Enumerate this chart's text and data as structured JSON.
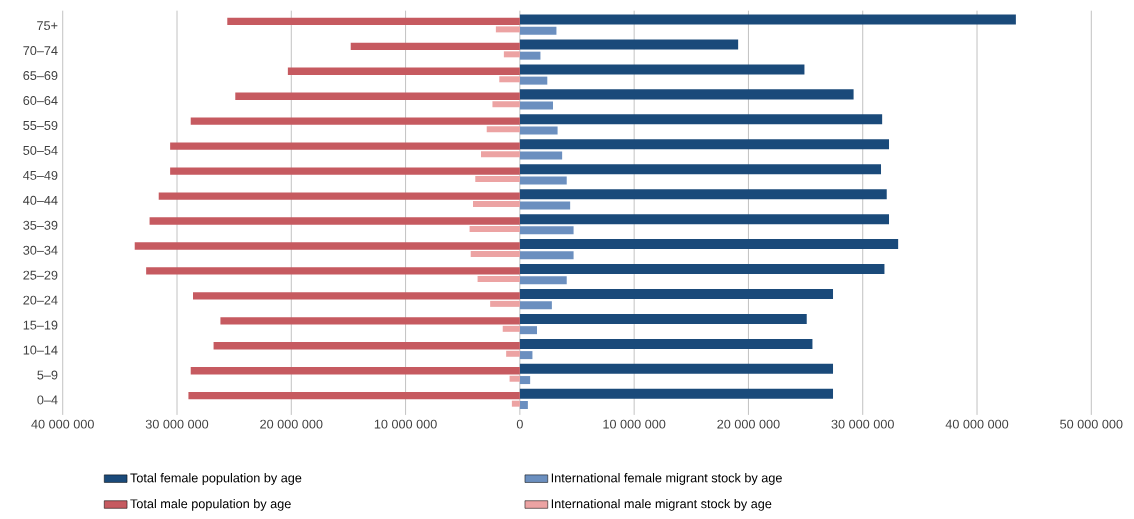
{
  "chart_data": {
    "type": "bar",
    "orientation": "horizontal",
    "categories": [
      "75+",
      "70–74",
      "65–69",
      "60–64",
      "55–59",
      "50–54",
      "45–49",
      "40–44",
      "35–39",
      "30–34",
      "25–29",
      "20–24",
      "15–19",
      "10–14",
      "5–9",
      "0–4"
    ],
    "series": [
      {
        "name": "Total female population by age",
        "color": "#1a4a7a",
        "values": [
          43400000,
          19100000,
          24900000,
          29200000,
          31700000,
          32300000,
          31600000,
          32100000,
          32300000,
          33100000,
          31900000,
          27400000,
          25100000,
          25600000,
          27400000,
          27400000
        ]
      },
      {
        "name": "International female migrant stock by age",
        "color": "#6b8fbf",
        "values": [
          3200000,
          1800000,
          2400000,
          2900000,
          3300000,
          3700000,
          4100000,
          4400000,
          4700000,
          4700000,
          4100000,
          2800000,
          1500000,
          1100000,
          900000,
          700000
        ]
      },
      {
        "name": "Total male population by age",
        "color": "#c65a60",
        "values": [
          -25600000,
          -14800000,
          -20300000,
          -24900000,
          -28800000,
          -30600000,
          -30600000,
          -31600000,
          -32400000,
          -33700000,
          -32700000,
          -28600000,
          -26200000,
          -26800000,
          -28800000,
          -29000000
        ]
      },
      {
        "name": "International male migrant stock by age",
        "color": "#eca3a3",
        "values": [
          -2100000,
          -1400000,
          -1800000,
          -2400000,
          -2900000,
          -3400000,
          -3900000,
          -4100000,
          -4400000,
          -4300000,
          -3700000,
          -2600000,
          -1500000,
          -1200000,
          -900000,
          -700000
        ]
      }
    ],
    "xlim": [
      -40000000,
      50000000
    ],
    "xticks": [
      {
        "value": -40000000,
        "label": "40 000 000"
      },
      {
        "value": -30000000,
        "label": "30 000 000"
      },
      {
        "value": -20000000,
        "label": "20 000 000"
      },
      {
        "value": -10000000,
        "label": "10 000 000"
      },
      0,
      {
        "value": 10000000,
        "label": "10 000 000"
      },
      {
        "value": 20000000,
        "label": "20 000 000"
      },
      {
        "value": 30000000,
        "label": "30 000 000"
      },
      {
        "value": 40000000,
        "label": "40 000 000"
      },
      {
        "value": 50000000,
        "label": "50 000 000"
      }
    ],
    "grid": "x",
    "legend": "bottom"
  }
}
